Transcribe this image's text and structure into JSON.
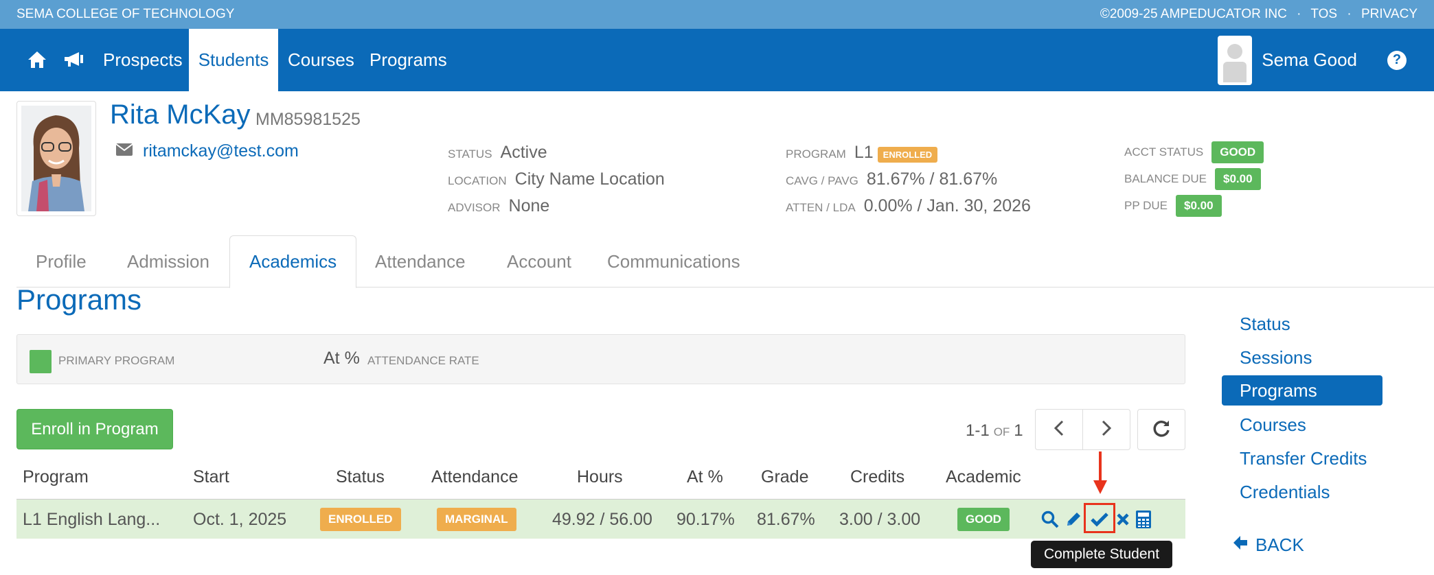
{
  "topbar": {
    "school": "SEMA COLLEGE OF TECHNOLOGY",
    "copyright": "©2009-25 AMPEDUCATOR INC",
    "tos": "TOS",
    "privacy": "PRIVACY",
    "separator": "·"
  },
  "nav": {
    "items": [
      {
        "label": "Prospects"
      },
      {
        "label": "Students"
      },
      {
        "label": "Courses"
      },
      {
        "label": "Programs"
      }
    ],
    "active": "Students",
    "user_name": "Sema Good",
    "help_glyph": "?"
  },
  "student": {
    "name": "Rita McKay",
    "id": "MM85981525",
    "email": "ritamckay@test.com"
  },
  "info": {
    "status_label": "STATUS",
    "status_value": "Active",
    "location_label": "LOCATION",
    "location_value": "City Name Location",
    "advisor_label": "ADVISOR",
    "advisor_value": "None",
    "program_label": "PROGRAM",
    "program_value": "L1",
    "program_tag": "ENROLLED",
    "cavg_label": "CAVG / PAVG",
    "cavg_value": "81.67% / 81.67%",
    "atten_label": "ATTEN / LDA",
    "atten_value": "0.00% / Jan. 30, 2026",
    "acct_label": "ACCT STATUS",
    "acct_value": "GOOD",
    "balance_label": "BALANCE DUE",
    "balance_value": "$0.00",
    "pp_label": "PP DUE",
    "pp_value": "$0.00"
  },
  "tabs": [
    {
      "label": "Profile"
    },
    {
      "label": "Admission"
    },
    {
      "label": "Academics"
    },
    {
      "label": "Attendance"
    },
    {
      "label": "Account"
    },
    {
      "label": "Communications"
    }
  ],
  "active_tab": "Academics",
  "section": {
    "title": "Programs",
    "legend_primary": "PRIMARY PROGRAM",
    "legend_at": "At %",
    "legend_attendance": "ATTENDANCE RATE"
  },
  "toolbar": {
    "enroll_label": "Enroll in Program",
    "range": "1-1",
    "of_label": "OF",
    "total": "1"
  },
  "table": {
    "headers": [
      "Program",
      "Start",
      "Status",
      "Attendance",
      "Hours",
      "At %",
      "Grade",
      "Credits",
      "Academic"
    ],
    "rows": [
      {
        "program": "L1 English Lang...",
        "start": "Oct. 1, 2025",
        "status": "ENROLLED",
        "attendance": "MARGINAL",
        "hours": "49.92 / 56.00",
        "at_pct": "90.17%",
        "grade": "81.67%",
        "credits": "3.00 / 3.00",
        "academic": "GOOD"
      }
    ]
  },
  "tooltip": "Complete Student",
  "sidebar": {
    "items": [
      {
        "label": "Status"
      },
      {
        "label": "Sessions"
      },
      {
        "label": "Programs"
      },
      {
        "label": "Courses"
      },
      {
        "label": "Transfer Credits"
      },
      {
        "label": "Credentials"
      }
    ],
    "active": "Programs",
    "back_label": "BACK"
  },
  "colors": {
    "primary": "#0b6ab8",
    "topbar": "#5b9fd1",
    "success": "#5cb85c",
    "warning": "#efad4d",
    "row_highlight": "#dff0d8",
    "annotation": "#e8331c"
  },
  "icons": [
    "home-icon",
    "megaphone-icon",
    "help-icon",
    "envelope-icon",
    "chevron-left-icon",
    "chevron-right-icon",
    "refresh-icon",
    "search-icon",
    "pencil-icon",
    "check-icon",
    "close-icon",
    "calculator-icon",
    "arrow-left-icon"
  ]
}
